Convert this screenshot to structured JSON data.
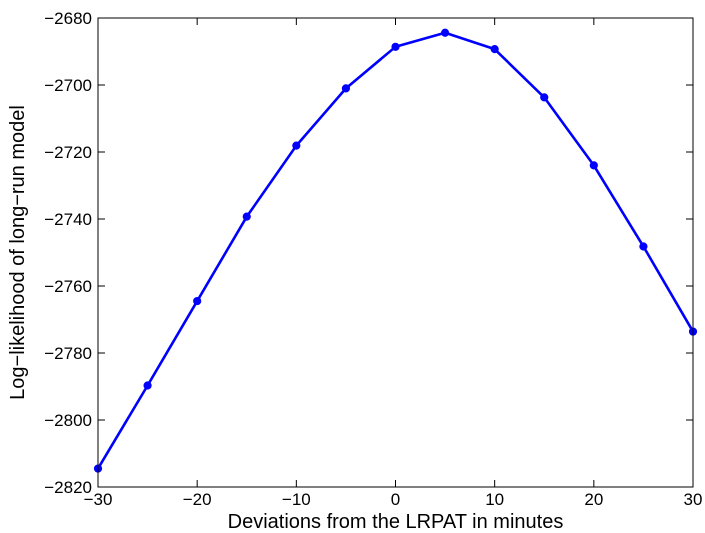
{
  "chart_data": {
    "type": "line",
    "title": "",
    "xlabel": "Deviations from the LRPAT in minutes",
    "ylabel": "Log−likelihood of long−run model",
    "xlim": [
      -30,
      30
    ],
    "ylim": [
      -2820,
      -2680
    ],
    "xticks": [
      -30,
      -20,
      -10,
      0,
      10,
      20,
      30
    ],
    "yticks": [
      -2820,
      -2800,
      -2780,
      -2760,
      -2740,
      -2720,
      -2700,
      -2680
    ],
    "xtick_labels": [
      "−30",
      "−20",
      "−10",
      "0",
      "10",
      "20",
      "30"
    ],
    "ytick_labels": [
      "−2820",
      "−2800",
      "−2780",
      "−2760",
      "−2740",
      "−2720",
      "−2700",
      "−2680"
    ],
    "grid": false,
    "legend": false,
    "series": [
      {
        "color": "#0000ff",
        "marker": "circle",
        "x": [
          -30,
          -25,
          -20,
          -15,
          -10,
          -5,
          0,
          5,
          10,
          15,
          20,
          25,
          30
        ],
        "y": [
          -2814.5,
          -2789.7,
          -2764.5,
          -2739.3,
          -2718.1,
          -2701.0,
          -2688.6,
          -2684.4,
          -2689.3,
          -2703.7,
          -2724.0,
          -2748.2,
          -2773.6
        ]
      }
    ]
  }
}
